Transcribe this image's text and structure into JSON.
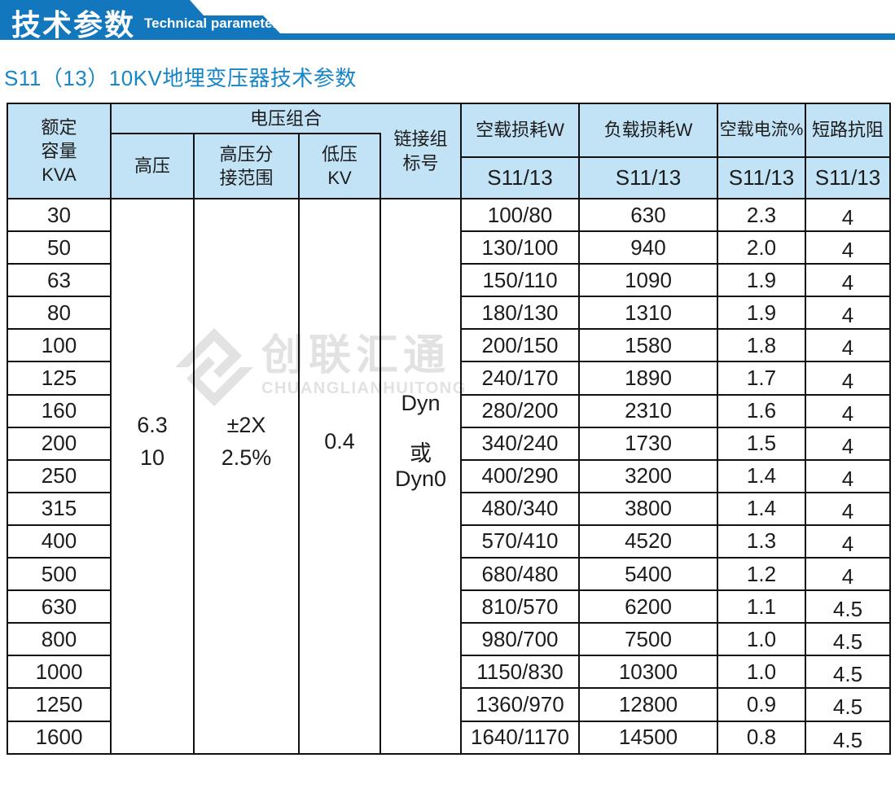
{
  "colors": {
    "accent_blue": "#1377be",
    "title_blue": "#1786c8",
    "header_bg": "#c2e2f5",
    "watermark_gray": "#e2e2e2"
  },
  "banner": {
    "title_cn": "技术参数",
    "title_en": "Technical parameter"
  },
  "page_title": "S11（13）10KV地埋变压器技术参数",
  "watermark": {
    "logo_icon": "interlocked-diamond-logo",
    "name_cn": "创联汇通",
    "name_en": "CHUANGLIANHUITONG"
  },
  "table": {
    "header": {
      "capacity": "额定\n容量\nKVA",
      "voltage_group": "电压组合",
      "hv": "高压",
      "hv_tap": "高压分\n接范围",
      "lv": "低压\nKV",
      "vector_group": "链接组\n标号",
      "no_load_loss": "空载损耗W",
      "load_loss": "负载损耗W",
      "no_load_current": "空载电流%",
      "impedance": "短路抗阻",
      "sub_model": "S11/13"
    },
    "merged": {
      "hv": "6.3\n10",
      "hv_tap": "±2X\n2.5%",
      "lv": "0.4",
      "vector_group": "Dyn\n\n或\nDyn0"
    },
    "rows": [
      {
        "kva": "30",
        "no_load": "100/80",
        "load": "630",
        "current": "2.3",
        "impedance": "4"
      },
      {
        "kva": "50",
        "no_load": "130/100",
        "load": "940",
        "current": "2.0",
        "impedance": "4"
      },
      {
        "kva": "63",
        "no_load": "150/110",
        "load": "1090",
        "current": "1.9",
        "impedance": "4"
      },
      {
        "kva": "80",
        "no_load": "180/130",
        "load": "1310",
        "current": "1.9",
        "impedance": "4"
      },
      {
        "kva": "100",
        "no_load": "200/150",
        "load": "1580",
        "current": "1.8",
        "impedance": "4"
      },
      {
        "kva": "125",
        "no_load": "240/170",
        "load": "1890",
        "current": "1.7",
        "impedance": "4"
      },
      {
        "kva": "160",
        "no_load": "280/200",
        "load": "2310",
        "current": "1.6",
        "impedance": "4"
      },
      {
        "kva": "200",
        "no_load": "340/240",
        "load": "1730",
        "current": "1.5",
        "impedance": "4"
      },
      {
        "kva": "250",
        "no_load": "400/290",
        "load": "3200",
        "current": "1.4",
        "impedance": "4"
      },
      {
        "kva": "315",
        "no_load": "480/340",
        "load": "3800",
        "current": "1.4",
        "impedance": "4"
      },
      {
        "kva": "400",
        "no_load": "570/410",
        "load": "4520",
        "current": "1.3",
        "impedance": "4"
      },
      {
        "kva": "500",
        "no_load": "680/480",
        "load": "5400",
        "current": "1.2",
        "impedance": "4"
      },
      {
        "kva": "630",
        "no_load": "810/570",
        "load": "6200",
        "current": "1.1",
        "impedance": "4.5"
      },
      {
        "kva": "800",
        "no_load": "980/700",
        "load": "7500",
        "current": "1.0",
        "impedance": "4.5"
      },
      {
        "kva": "1000",
        "no_load": "1150/830",
        "load": "10300",
        "current": "1.0",
        "impedance": "4.5"
      },
      {
        "kva": "1250",
        "no_load": "1360/970",
        "load": "12800",
        "current": "0.9",
        "impedance": "4.5"
      },
      {
        "kva": "1600",
        "no_load": "1640/1170",
        "load": "14500",
        "current": "0.8",
        "impedance": "4.5"
      }
    ]
  }
}
